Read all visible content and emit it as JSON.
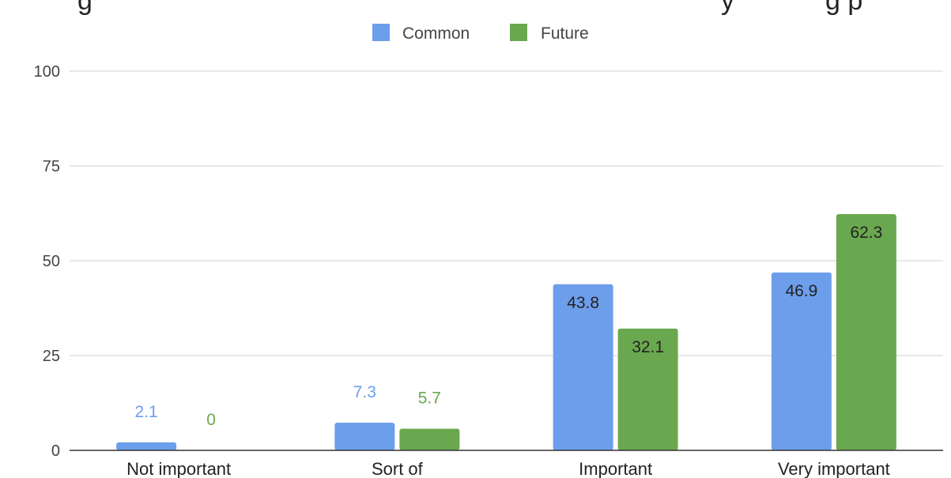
{
  "chart_data": {
    "type": "bar",
    "title_fragment_left": "g",
    "title_fragment_right": "y",
    "title_fragment_end": "g p",
    "categories": [
      "Not important",
      "Sort of",
      "Important",
      "Very important"
    ],
    "series": [
      {
        "name": "Common",
        "color": "#6d9eeb",
        "values": [
          2.1,
          7.3,
          43.8,
          46.9
        ]
      },
      {
        "name": "Future",
        "color": "#6aa84f",
        "values": [
          0,
          5.7,
          32.1,
          62.3
        ]
      }
    ],
    "ylim": [
      0,
      100
    ],
    "yticks": [
      0,
      25,
      50,
      75,
      100
    ],
    "grid": true,
    "legend_position": "top"
  }
}
